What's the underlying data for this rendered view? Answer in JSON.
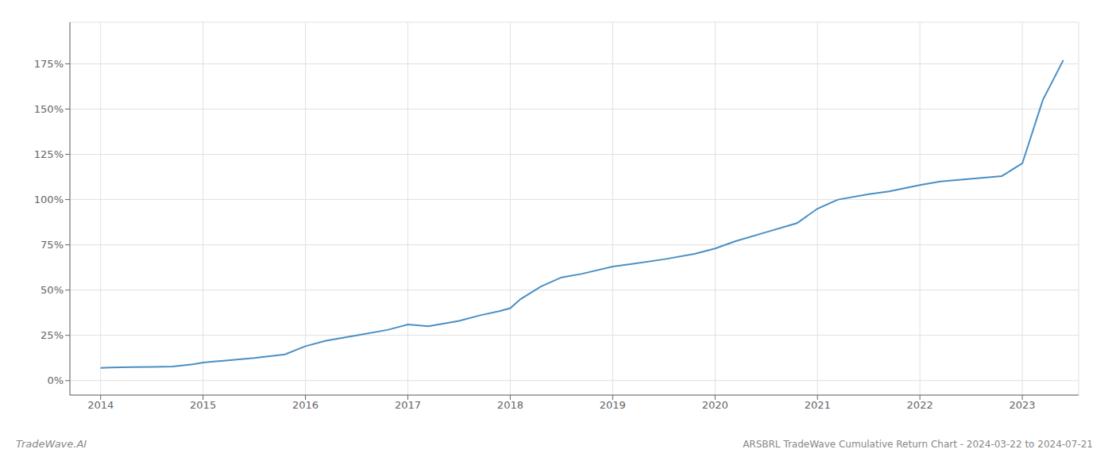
{
  "chart_data": {
    "type": "line",
    "title": "ARSBRL TradeWave Cumulative Return Chart - 2024-03-22 to 2024-07-21",
    "annotations": [
      "TradeWave.AI"
    ],
    "x": [
      2014.0,
      2014.1,
      2014.2,
      2014.3,
      2014.5,
      2014.7,
      2014.9,
      2015.0,
      2015.1,
      2015.2,
      2015.5,
      2015.8,
      2016.0,
      2016.2,
      2016.5,
      2016.8,
      2017.0,
      2017.2,
      2017.5,
      2017.7,
      2017.9,
      2018.0,
      2018.1,
      2018.3,
      2018.5,
      2018.7,
      2019.0,
      2019.2,
      2019.5,
      2019.8,
      2020.0,
      2020.2,
      2020.5,
      2020.8,
      2021.0,
      2021.2,
      2021.5,
      2021.7,
      2022.0,
      2022.2,
      2022.4,
      2022.6,
      2022.8,
      2023.0,
      2023.2,
      2023.4
    ],
    "values": [
      7.0,
      7.2,
      7.3,
      7.4,
      7.6,
      7.8,
      9.0,
      10.0,
      10.5,
      11.0,
      12.5,
      14.5,
      19.0,
      22.0,
      25.0,
      28.0,
      31.0,
      30.0,
      33.0,
      36.0,
      38.5,
      40.0,
      45.0,
      52.0,
      57.0,
      59.0,
      63.0,
      64.5,
      67.0,
      70.0,
      73.0,
      77.0,
      82.0,
      87.0,
      95.0,
      100.0,
      103.0,
      104.5,
      108.0,
      110.0,
      111.0,
      112.0,
      113.0,
      120.0,
      155.0,
      177.0
    ],
    "color": "#4a8fc4",
    "xlim": [
      2013.7,
      2023.55
    ],
    "ylim": [
      -8,
      198
    ],
    "xticks": [
      2014,
      2015,
      2016,
      2017,
      2018,
      2019,
      2020,
      2021,
      2022,
      2023
    ],
    "yticks": [
      {
        "value": 0,
        "label": "0%"
      },
      {
        "value": 25,
        "label": "25%"
      },
      {
        "value": 50,
        "label": "50%"
      },
      {
        "value": 75,
        "label": "75%"
      },
      {
        "value": 100,
        "label": "100%"
      },
      {
        "value": 125,
        "label": "125%"
      },
      {
        "value": 150,
        "label": "150%"
      },
      {
        "value": 175,
        "label": "175%"
      }
    ],
    "grid": true
  }
}
